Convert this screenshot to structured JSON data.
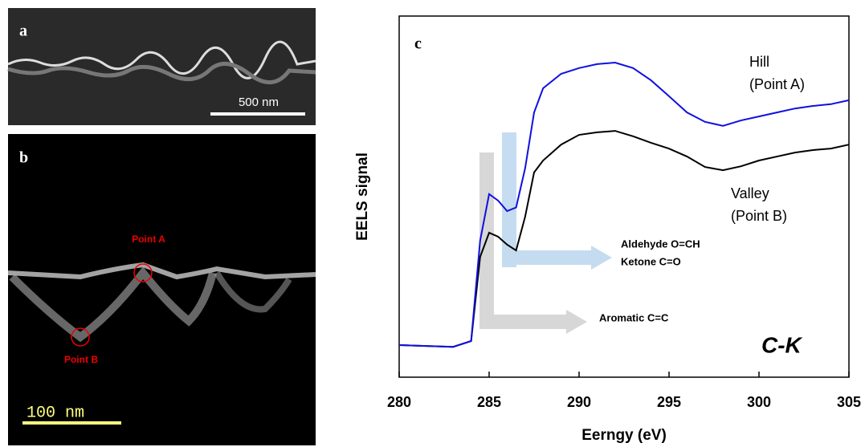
{
  "panels": {
    "a": {
      "label": "a",
      "scale_bar": "500 nm"
    },
    "b": {
      "label": "b",
      "scale_bar": "100 nm",
      "point_a": "Point A",
      "point_b": "Point B"
    }
  },
  "chart_data": {
    "type": "line",
    "panel_label": "c",
    "xlabel": "Eerngy (eV)",
    "ylabel": "EELS signal",
    "x": [
      280,
      283,
      284,
      284.5,
      285,
      285.5,
      286,
      286.5,
      287,
      287.5,
      288,
      289,
      290,
      291,
      292,
      293,
      294,
      295,
      296,
      297,
      298,
      299,
      300,
      301,
      302,
      303,
      304,
      305
    ],
    "series": [
      {
        "color": "#1010e0",
        "values": [
          8.9,
          8.4,
          10,
          37.8,
          50.7,
          48.9,
          46,
          47,
          57.8,
          73.3,
          80,
          84,
          85.6,
          86.7,
          87.1,
          85.6,
          82.2,
          77.8,
          73.3,
          70.7,
          69.6,
          71.1,
          72.2,
          73.3,
          74.4,
          75.1,
          75.6,
          76.7
        ]
      },
      {
        "color": "#000000",
        "values": [
          8.9,
          8.4,
          10,
          33.3,
          40,
          38.9,
          36.7,
          35.1,
          44.4,
          56.7,
          60,
          64.4,
          67.1,
          67.8,
          68.2,
          66.7,
          64.9,
          63.3,
          61.1,
          58.2,
          57.3,
          58.4,
          60,
          61.1,
          62.2,
          62.9,
          63.3,
          64.4
        ]
      }
    ],
    "xlim": [
      280,
      305
    ],
    "ylim": [
      0,
      100
    ],
    "xticks": [
      280,
      285,
      290,
      295,
      300,
      305
    ],
    "annotations": {
      "hill": [
        "Hill",
        "(Point A)"
      ],
      "valley": [
        "Valley",
        "(Point B)"
      ],
      "blue_arrow": [
        "Aldehyde O=CH",
        "Ketone C=O"
      ],
      "gray_arrow": "Aromatic C=C",
      "edge": "C-K"
    }
  }
}
